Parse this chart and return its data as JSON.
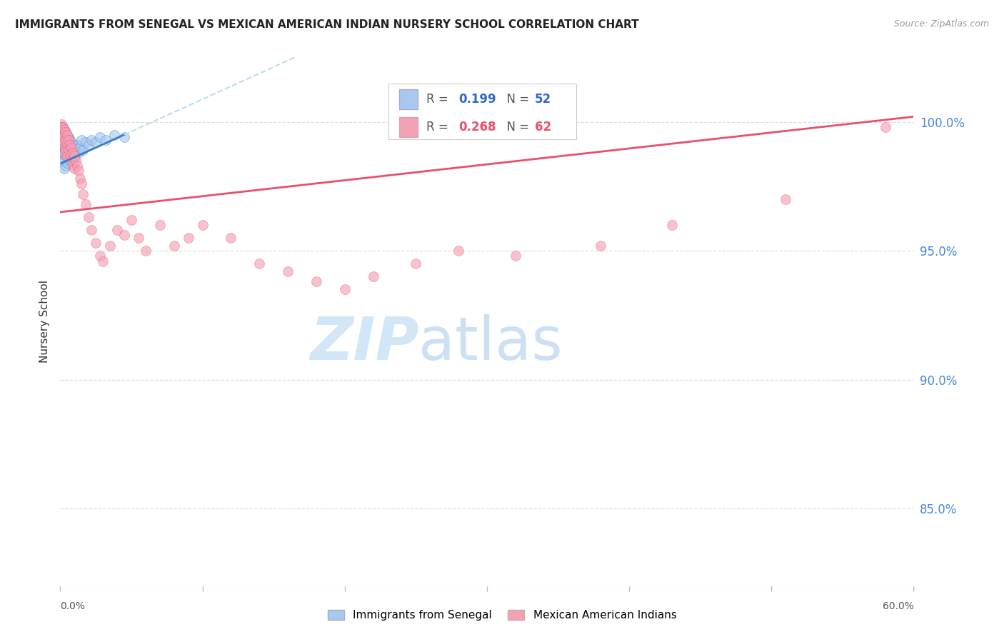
{
  "title": "IMMIGRANTS FROM SENEGAL VS MEXICAN AMERICAN INDIAN NURSERY SCHOOL CORRELATION CHART",
  "source": "Source: ZipAtlas.com",
  "ylabel": "Nursery School",
  "ytick_labels": [
    "100.0%",
    "95.0%",
    "90.0%",
    "85.0%"
  ],
  "ytick_values": [
    1.0,
    0.95,
    0.9,
    0.85
  ],
  "xlim": [
    0.0,
    0.6
  ],
  "ylim": [
    0.82,
    1.025
  ],
  "color_blue": "#A8C8F0",
  "color_pink": "#F4A0B5",
  "line_blue": "#3A7CC3",
  "line_pink": "#E8506A",
  "line_dashed_blue": "#BBDDEE",
  "senegal_x": [
    0.001,
    0.001,
    0.001,
    0.001,
    0.001,
    0.002,
    0.002,
    0.002,
    0.002,
    0.002,
    0.002,
    0.003,
    0.003,
    0.003,
    0.003,
    0.003,
    0.003,
    0.004,
    0.004,
    0.004,
    0.004,
    0.004,
    0.005,
    0.005,
    0.005,
    0.005,
    0.006,
    0.006,
    0.006,
    0.007,
    0.007,
    0.007,
    0.008,
    0.008,
    0.009,
    0.009,
    0.01,
    0.01,
    0.011,
    0.012,
    0.013,
    0.014,
    0.015,
    0.016,
    0.018,
    0.02,
    0.022,
    0.025,
    0.028,
    0.032,
    0.038,
    0.045
  ],
  "senegal_y": [
    0.998,
    0.996,
    0.994,
    0.992,
    0.99,
    0.998,
    0.996,
    0.993,
    0.991,
    0.988,
    0.985,
    0.997,
    0.994,
    0.991,
    0.988,
    0.985,
    0.982,
    0.996,
    0.993,
    0.99,
    0.987,
    0.983,
    0.995,
    0.992,
    0.988,
    0.984,
    0.994,
    0.99,
    0.986,
    0.993,
    0.989,
    0.985,
    0.992,
    0.988,
    0.991,
    0.987,
    0.99,
    0.986,
    0.989,
    0.991,
    0.988,
    0.99,
    0.993,
    0.989,
    0.992,
    0.991,
    0.993,
    0.992,
    0.994,
    0.993,
    0.995,
    0.994
  ],
  "mexican_x": [
    0.001,
    0.001,
    0.001,
    0.002,
    0.002,
    0.002,
    0.002,
    0.003,
    0.003,
    0.003,
    0.003,
    0.004,
    0.004,
    0.004,
    0.005,
    0.005,
    0.005,
    0.006,
    0.006,
    0.007,
    0.007,
    0.008,
    0.008,
    0.009,
    0.009,
    0.01,
    0.01,
    0.011,
    0.012,
    0.013,
    0.014,
    0.015,
    0.016,
    0.018,
    0.02,
    0.022,
    0.025,
    0.028,
    0.03,
    0.035,
    0.04,
    0.045,
    0.05,
    0.055,
    0.06,
    0.07,
    0.08,
    0.09,
    0.1,
    0.12,
    0.14,
    0.16,
    0.18,
    0.2,
    0.22,
    0.25,
    0.28,
    0.32,
    0.38,
    0.43,
    0.51,
    0.58
  ],
  "mexican_y": [
    0.999,
    0.998,
    0.996,
    0.998,
    0.996,
    0.994,
    0.991,
    0.997,
    0.995,
    0.992,
    0.988,
    0.996,
    0.993,
    0.989,
    0.995,
    0.991,
    0.987,
    0.993,
    0.989,
    0.991,
    0.987,
    0.99,
    0.985,
    0.988,
    0.983,
    0.987,
    0.982,
    0.985,
    0.983,
    0.981,
    0.978,
    0.976,
    0.972,
    0.968,
    0.963,
    0.958,
    0.953,
    0.948,
    0.946,
    0.952,
    0.958,
    0.956,
    0.962,
    0.955,
    0.95,
    0.96,
    0.952,
    0.955,
    0.96,
    0.955,
    0.945,
    0.942,
    0.938,
    0.935,
    0.94,
    0.945,
    0.95,
    0.948,
    0.952,
    0.96,
    0.97,
    0.998
  ],
  "pink_trend_x0": 0.0,
  "pink_trend_y0": 0.965,
  "pink_trend_x1": 0.6,
  "pink_trend_y1": 1.002,
  "blue_trend_x0": 0.001,
  "blue_trend_y0": 0.984,
  "blue_trend_x1": 0.045,
  "blue_trend_y1": 0.995
}
